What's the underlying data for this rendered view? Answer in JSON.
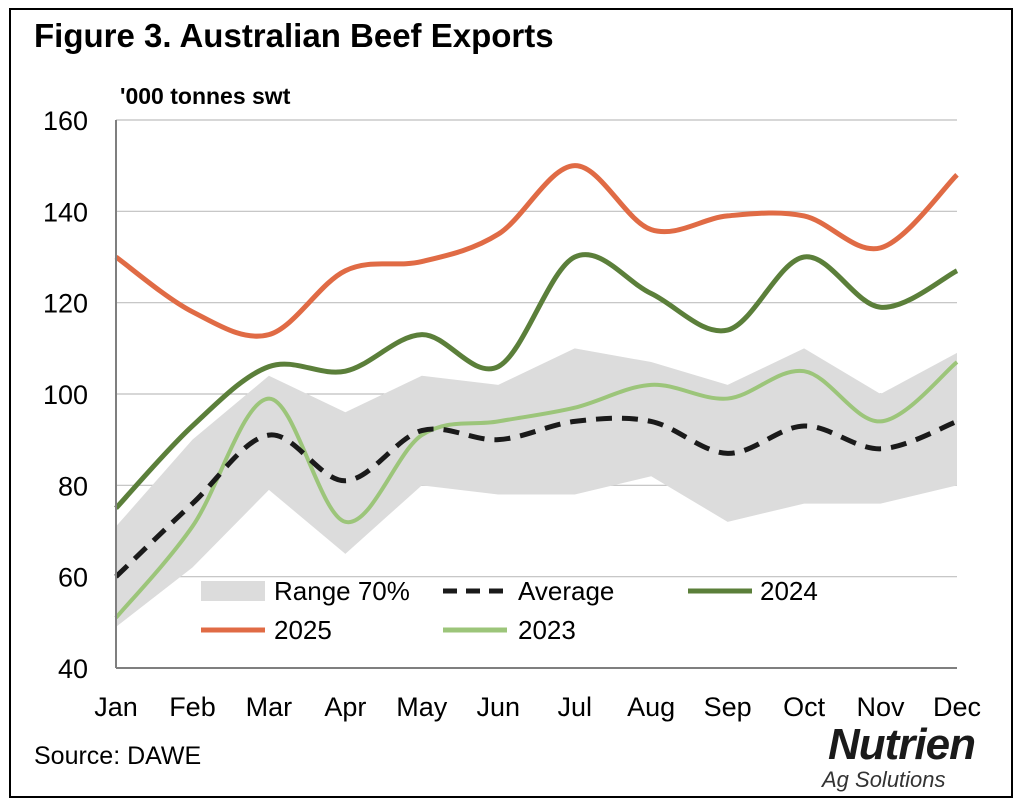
{
  "figure": {
    "title": "Figure 3. Australian Beef Exports",
    "unit_label": "'000 tonnes swt",
    "source": "Source: DAWE"
  },
  "logo": {
    "name": "Nutrien",
    "subtitle": "Ag Solutions"
  },
  "colors": {
    "range": "#dcdcdc",
    "average": "#1a1a1a",
    "y2024": "#5b7f3a",
    "y2025": "#e06b45",
    "y2023": "#9cc57a",
    "grid": "#bfbfbf",
    "axis": "#7f7f7f"
  },
  "chart_data": {
    "type": "line",
    "title": "Figure 3. Australian Beef Exports",
    "ylabel": "'000 tonnes swt",
    "xlabel": "",
    "categories": [
      "Jan",
      "Feb",
      "Mar",
      "Apr",
      "May",
      "Jun",
      "Jul",
      "Aug",
      "Sep",
      "Oct",
      "Nov",
      "Dec"
    ],
    "ylim": [
      40,
      160
    ],
    "yticks": [
      40,
      60,
      80,
      100,
      120,
      140,
      160
    ],
    "grid": true,
    "range": {
      "name": "Range 70%",
      "low": [
        49,
        62,
        79,
        65,
        80,
        78,
        78,
        82,
        72,
        76,
        76,
        80
      ],
      "high": [
        71,
        90,
        104,
        96,
        104,
        102,
        110,
        107,
        102,
        110,
        100,
        109
      ]
    },
    "series": [
      {
        "name": "Average",
        "style": "dashed",
        "values": [
          60,
          76,
          91,
          81,
          92,
          90,
          94,
          94,
          87,
          93,
          88,
          94
        ]
      },
      {
        "name": "2024",
        "style": "solid",
        "values": [
          75,
          93,
          106,
          105,
          113,
          106,
          130,
          122,
          114,
          130,
          119,
          127
        ]
      },
      {
        "name": "2025",
        "style": "solid",
        "values": [
          130,
          118,
          113,
          127,
          129,
          135,
          150,
          136,
          139,
          139,
          132,
          148
        ]
      },
      {
        "name": "2023",
        "style": "solid",
        "values": [
          51,
          71,
          99,
          72,
          91,
          94,
          97,
          102,
          99,
          105,
          94,
          107
        ]
      }
    ],
    "legend": [
      {
        "label": "Range 70%",
        "kind": "range"
      },
      {
        "label": "Average",
        "kind": "average"
      },
      {
        "label": "2024",
        "kind": "y2024"
      },
      {
        "label": "2025",
        "kind": "y2025"
      },
      {
        "label": "2023",
        "kind": "y2023"
      }
    ]
  }
}
